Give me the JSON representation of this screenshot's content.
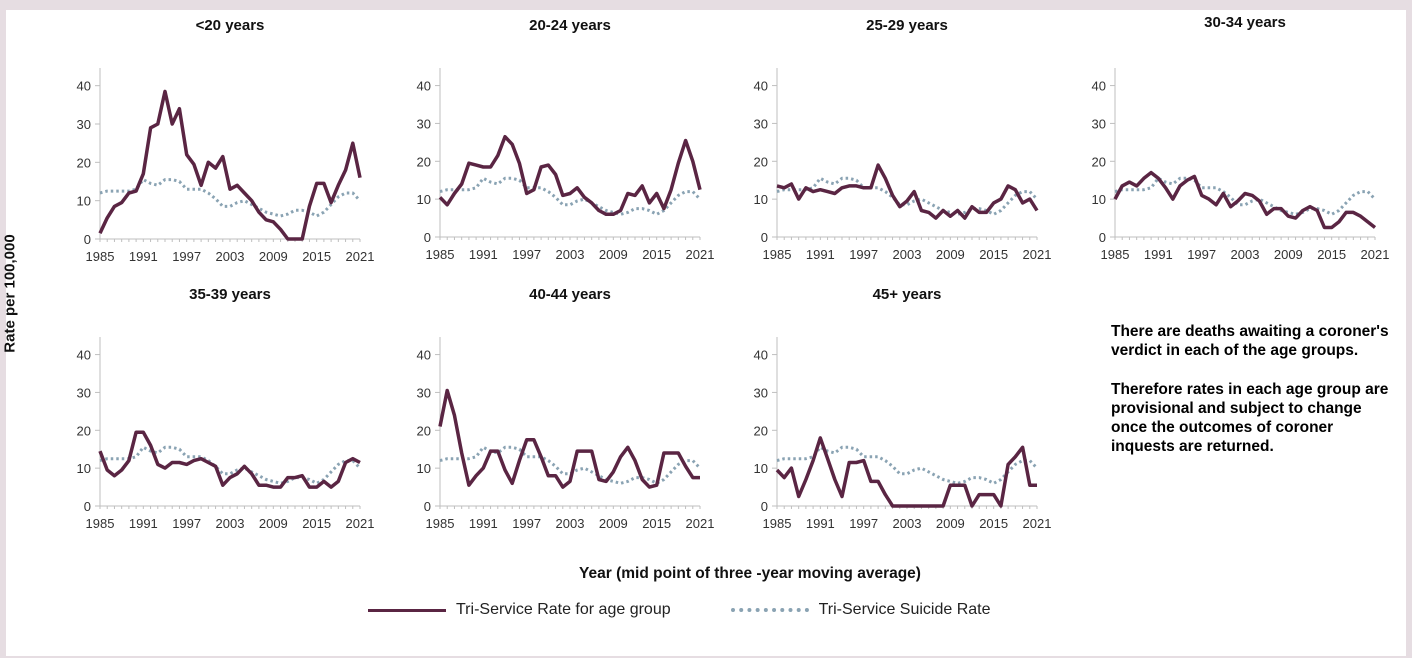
{
  "ylabel": "Rate per 100,000",
  "xlabel": "Year (mid point of three  -year moving average)",
  "legend": {
    "rate": "Tri-Service Rate for age group",
    "suicide": "Tri-Service Suicide Rate"
  },
  "colors": {
    "rate": "#5a2543",
    "suicide": "#8aa3b3",
    "axis": "#bfbfbf",
    "background": "#e6dde2"
  },
  "note": {
    "p1": "There are deaths awaiting a coroner's verdict in each of the age groups.",
    "p2": "Therefore rates in each age group are provisional and subject to change once the outcomes of coroner inquests are returned."
  },
  "chart_data": [
    {
      "type": "line",
      "title": "<20 years",
      "x": [
        1985,
        1986,
        1987,
        1988,
        1989,
        1990,
        1991,
        1992,
        1993,
        1994,
        1995,
        1996,
        1997,
        1998,
        1999,
        2000,
        2001,
        2002,
        2003,
        2004,
        2005,
        2006,
        2007,
        2008,
        2009,
        2010,
        2011,
        2012,
        2013,
        2014,
        2015,
        2016,
        2017,
        2018,
        2019,
        2020,
        2021
      ],
      "xticks": [
        1985,
        1991,
        1997,
        2003,
        2009,
        2015,
        2021
      ],
      "yticks": [
        0,
        10,
        20,
        30,
        40
      ],
      "ylim": [
        0,
        42
      ],
      "series": [
        {
          "name": "Tri-Service Rate for age group",
          "values": [
            1.5,
            5.5,
            8.5,
            9.5,
            12,
            12.5,
            17,
            29,
            30,
            38.5,
            30,
            34,
            22,
            19.5,
            14,
            20,
            18.5,
            21.5,
            13,
            14,
            12,
            10,
            7,
            5,
            4.5,
            2.5,
            0,
            0,
            0,
            8.5,
            14.5,
            14.5,
            9.5,
            14,
            18,
            25,
            16
          ]
        },
        {
          "name": "Tri-Service Suicide Rate",
          "values": [
            12,
            12.5,
            12.5,
            12.5,
            12.5,
            13,
            15.5,
            14.5,
            14,
            15.5,
            15.5,
            15,
            13,
            13,
            13,
            12,
            10.5,
            8.5,
            8.5,
            9.5,
            10,
            9,
            8,
            7,
            6.5,
            6,
            6.5,
            7.5,
            7.5,
            7,
            6,
            7,
            9,
            11,
            12,
            12,
            10
          ]
        }
      ]
    },
    {
      "type": "line",
      "title": "20-24 years",
      "x": [
        1985,
        1986,
        1987,
        1988,
        1989,
        1990,
        1991,
        1992,
        1993,
        1994,
        1995,
        1996,
        1997,
        1998,
        1999,
        2000,
        2001,
        2002,
        2003,
        2004,
        2005,
        2006,
        2007,
        2008,
        2009,
        2010,
        2011,
        2012,
        2013,
        2014,
        2015,
        2016,
        2017,
        2018,
        2019,
        2020,
        2021
      ],
      "xticks": [
        1985,
        1991,
        1997,
        2003,
        2009,
        2015,
        2021
      ],
      "yticks": [
        0,
        10,
        20,
        30,
        40
      ],
      "ylim": [
        0,
        42
      ],
      "series": [
        {
          "name": "Tri-Service Rate for age group",
          "values": [
            10.5,
            8.5,
            11.5,
            14,
            19.5,
            19,
            18.5,
            18.5,
            21.5,
            26.5,
            24.5,
            19.5,
            11.5,
            12.5,
            18.5,
            19,
            16.5,
            11,
            11.5,
            13,
            10.5,
            9,
            7,
            6,
            6,
            7,
            11.5,
            11,
            13.5,
            9,
            11.5,
            7.5,
            12.5,
            19.5,
            25.5,
            20,
            12.5
          ]
        },
        {
          "name": "Tri-Service Suicide Rate",
          "values": [
            12,
            12.5,
            12.5,
            12.5,
            12.5,
            13,
            15.5,
            14.5,
            14,
            15.5,
            15.5,
            15,
            13,
            13,
            13,
            12,
            10.5,
            8.5,
            8.5,
            9.5,
            10,
            9,
            8,
            7,
            6.5,
            6,
            6.5,
            7.5,
            7.5,
            7,
            6,
            7,
            9,
            11,
            12,
            12,
            10
          ]
        }
      ]
    },
    {
      "type": "line",
      "title": "25-29 years",
      "x": [
        1985,
        1986,
        1987,
        1988,
        1989,
        1990,
        1991,
        1992,
        1993,
        1994,
        1995,
        1996,
        1997,
        1998,
        1999,
        2000,
        2001,
        2002,
        2003,
        2004,
        2005,
        2006,
        2007,
        2008,
        2009,
        2010,
        2011,
        2012,
        2013,
        2014,
        2015,
        2016,
        2017,
        2018,
        2019,
        2020,
        2021
      ],
      "xticks": [
        1985,
        1991,
        1997,
        2003,
        2009,
        2015,
        2021
      ],
      "yticks": [
        0,
        10,
        20,
        30,
        40
      ],
      "ylim": [
        0,
        42
      ],
      "series": [
        {
          "name": "Tri-Service Rate for age group",
          "values": [
            13.5,
            13,
            14,
            10,
            13,
            12,
            12.5,
            12,
            11.5,
            13,
            13.5,
            13.5,
            13,
            13,
            19,
            15.5,
            11,
            8,
            9.5,
            12,
            7,
            6.5,
            5,
            7,
            5.5,
            7,
            5,
            8,
            6.5,
            6.5,
            9,
            10,
            13.5,
            12.5,
            9,
            10,
            7
          ]
        },
        {
          "name": "Tri-Service Suicide Rate",
          "values": [
            12,
            12.5,
            12.5,
            12.5,
            12.5,
            13,
            15.5,
            14.5,
            14,
            15.5,
            15.5,
            15,
            13,
            13,
            13,
            12,
            10.5,
            8.5,
            8.5,
            9.5,
            10,
            9,
            8,
            7,
            6.5,
            6,
            6.5,
            7.5,
            7.5,
            7,
            6,
            7,
            9,
            11,
            12,
            12,
            10
          ]
        }
      ]
    },
    {
      "type": "line",
      "title": "30-34 years",
      "x": [
        1985,
        1986,
        1987,
        1988,
        1989,
        1990,
        1991,
        1992,
        1993,
        1994,
        1995,
        1996,
        1997,
        1998,
        1999,
        2000,
        2001,
        2002,
        2003,
        2004,
        2005,
        2006,
        2007,
        2008,
        2009,
        2010,
        2011,
        2012,
        2013,
        2014,
        2015,
        2016,
        2017,
        2018,
        2019,
        2020,
        2021
      ],
      "xticks": [
        1985,
        1991,
        1997,
        2003,
        2009,
        2015,
        2021
      ],
      "yticks": [
        0,
        10,
        20,
        30,
        40
      ],
      "ylim": [
        0,
        42
      ],
      "series": [
        {
          "name": "Tri-Service Rate for age group",
          "values": [
            10,
            13.5,
            14.5,
            13.5,
            15.5,
            17,
            15.5,
            13,
            10,
            13.5,
            15,
            16,
            11,
            10,
            8.5,
            11.5,
            8,
            9.5,
            11.5,
            11,
            9.5,
            6,
            7.5,
            7.5,
            5.5,
            5,
            7,
            8,
            7,
            2.5,
            2.5,
            4,
            6.5,
            6.5,
            5.5,
            4,
            2.5
          ]
        },
        {
          "name": "Tri-Service Suicide Rate",
          "values": [
            12,
            12.5,
            12.5,
            12.5,
            12.5,
            13,
            15.5,
            14.5,
            14,
            15.5,
            15.5,
            15,
            13,
            13,
            13,
            12,
            10.5,
            8.5,
            8.5,
            9.5,
            10,
            9,
            8,
            7,
            6.5,
            6,
            6.5,
            7.5,
            7.5,
            7,
            6,
            7,
            9,
            11,
            12,
            12,
            10
          ]
        }
      ]
    },
    {
      "type": "line",
      "title": "35-39 years",
      "x": [
        1985,
        1986,
        1987,
        1988,
        1989,
        1990,
        1991,
        1992,
        1993,
        1994,
        1995,
        1996,
        1997,
        1998,
        1999,
        2000,
        2001,
        2002,
        2003,
        2004,
        2005,
        2006,
        2007,
        2008,
        2009,
        2010,
        2011,
        2012,
        2013,
        2014,
        2015,
        2016,
        2017,
        2018,
        2019,
        2020,
        2021
      ],
      "xticks": [
        1985,
        1991,
        1997,
        2003,
        2009,
        2015,
        2021
      ],
      "yticks": [
        0,
        10,
        20,
        30,
        40
      ],
      "ylim": [
        0,
        42
      ],
      "series": [
        {
          "name": "Tri-Service Rate for age group",
          "values": [
            14.5,
            9.5,
            8,
            9.5,
            12,
            19.5,
            19.5,
            16,
            11,
            10,
            11.5,
            11.5,
            11,
            12,
            12.5,
            11.5,
            10.5,
            5.5,
            7.5,
            8.5,
            10.5,
            8.5,
            5.5,
            5.5,
            5,
            5,
            7.5,
            7.5,
            8,
            5,
            5,
            6.5,
            5,
            6.5,
            11.5,
            12.5,
            11.5
          ]
        },
        {
          "name": "Tri-Service Suicide Rate",
          "values": [
            12,
            12.5,
            12.5,
            12.5,
            12.5,
            13,
            15.5,
            14.5,
            14,
            15.5,
            15.5,
            15,
            13,
            13,
            13,
            12,
            10.5,
            8.5,
            8.5,
            9.5,
            10,
            9,
            8,
            7,
            6.5,
            6,
            6.5,
            7.5,
            7.5,
            7,
            6,
            7,
            9,
            11,
            12,
            12,
            10
          ]
        }
      ]
    },
    {
      "type": "line",
      "title": "40-44 years",
      "x": [
        1985,
        1986,
        1987,
        1988,
        1989,
        1990,
        1991,
        1992,
        1993,
        1994,
        1995,
        1996,
        1997,
        1998,
        1999,
        2000,
        2001,
        2002,
        2003,
        2004,
        2005,
        2006,
        2007,
        2008,
        2009,
        2010,
        2011,
        2012,
        2013,
        2014,
        2015,
        2016,
        2017,
        2018,
        2019,
        2020,
        2021
      ],
      "xticks": [
        1985,
        1991,
        1997,
        2003,
        2009,
        2015,
        2021
      ],
      "yticks": [
        0,
        10,
        20,
        30,
        40
      ],
      "ylim": [
        0,
        42
      ],
      "series": [
        {
          "name": "Tri-Service Rate for age group",
          "values": [
            21,
            30.5,
            24,
            14,
            5.5,
            8,
            10,
            14.5,
            14.5,
            9.5,
            6,
            12,
            17.5,
            17.5,
            13,
            8,
            8,
            5,
            6.5,
            14.5,
            14.5,
            14.5,
            7,
            6.5,
            9,
            13,
            15.5,
            12,
            7,
            5,
            5.5,
            14,
            14,
            14,
            10.5,
            7.5,
            7.5
          ]
        },
        {
          "name": "Tri-Service Suicide Rate",
          "values": [
            12,
            12.5,
            12.5,
            12.5,
            12.5,
            13,
            15.5,
            14.5,
            14,
            15.5,
            15.5,
            15,
            13,
            13,
            13,
            12,
            10.5,
            8.5,
            8.5,
            9.5,
            10,
            9,
            8,
            7,
            6.5,
            6,
            6.5,
            7.5,
            7.5,
            7,
            6,
            7,
            9,
            11,
            12,
            12,
            10
          ]
        }
      ]
    },
    {
      "type": "line",
      "title": "45+ years",
      "x": [
        1985,
        1986,
        1987,
        1988,
        1989,
        1990,
        1991,
        1992,
        1993,
        1994,
        1995,
        1996,
        1997,
        1998,
        1999,
        2000,
        2001,
        2002,
        2003,
        2004,
        2005,
        2006,
        2007,
        2008,
        2009,
        2010,
        2011,
        2012,
        2013,
        2014,
        2015,
        2016,
        2017,
        2018,
        2019,
        2020,
        2021
      ],
      "xticks": [
        1985,
        1991,
        1997,
        2003,
        2009,
        2015,
        2021
      ],
      "yticks": [
        0,
        10,
        20,
        30,
        40
      ],
      "ylim": [
        0,
        42
      ],
      "series": [
        {
          "name": "Tri-Service Rate for age group",
          "values": [
            9.5,
            7.5,
            10,
            2.5,
            7,
            12,
            18,
            12.5,
            7,
            2.5,
            11.5,
            11.5,
            12,
            6.5,
            6.5,
            3,
            0,
            0,
            0,
            0,
            0,
            0,
            0,
            0,
            5.5,
            5.5,
            5.5,
            0,
            3,
            3,
            3,
            0,
            11,
            13,
            15.5,
            5.5,
            5.5
          ]
        },
        {
          "name": "Tri-Service Suicide Rate",
          "values": [
            12,
            12.5,
            12.5,
            12.5,
            12.5,
            13,
            15.5,
            14.5,
            14,
            15.5,
            15.5,
            15,
            13,
            13,
            13,
            12,
            10.5,
            8.5,
            8.5,
            9.5,
            10,
            9,
            8,
            7,
            6.5,
            6,
            6.5,
            7.5,
            7.5,
            7,
            6,
            7,
            9,
            11,
            12,
            12,
            10
          ]
        }
      ]
    }
  ]
}
